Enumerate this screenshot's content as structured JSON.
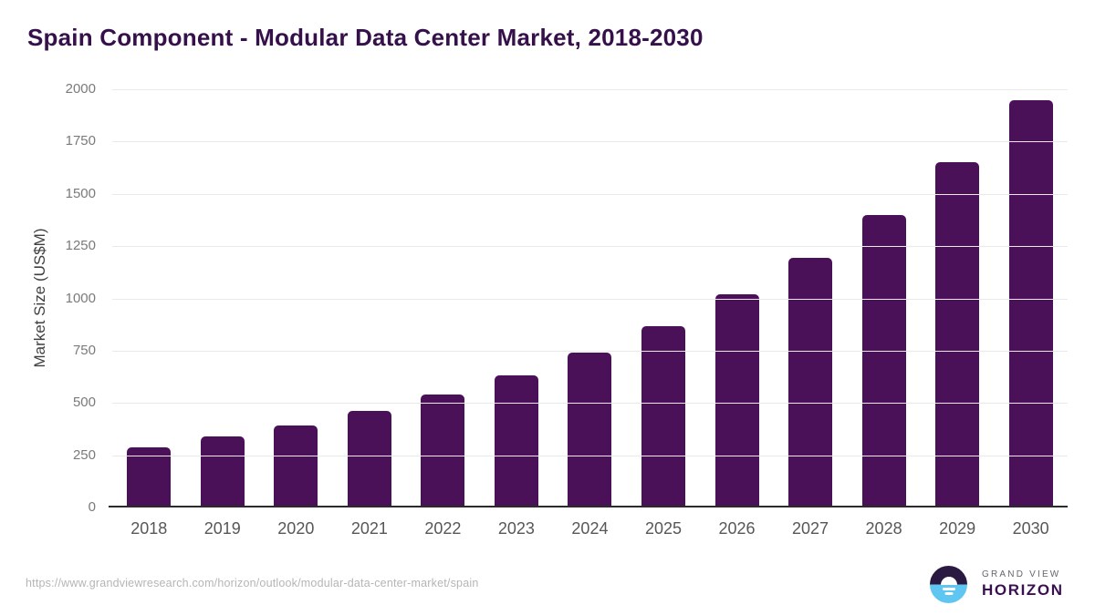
{
  "header": {
    "title": "Spain Component - Modular Data Center Market, 2018-2030"
  },
  "chart_data": {
    "type": "bar",
    "title": "Spain Component - Modular Data Center Market, 2018-2030",
    "categories": [
      "2018",
      "2019",
      "2020",
      "2021",
      "2022",
      "2023",
      "2024",
      "2025",
      "2026",
      "2027",
      "2028",
      "2029",
      "2030"
    ],
    "values": [
      289,
      338,
      393,
      460,
      540,
      631,
      739,
      865,
      1020,
      1195,
      1400,
      1652,
      1946
    ],
    "xlabel": "",
    "ylabel": "Market Size (US$M)",
    "ylim": [
      0,
      2000
    ],
    "yticks": [
      0,
      250,
      500,
      750,
      1000,
      1250,
      1500,
      1750,
      2000
    ],
    "grid": true,
    "legend": false,
    "bar_color": "#4a1058"
  },
  "footer": {
    "source_url": "https://www.grandviewresearch.com/horizon/outlook/modular-data-center-market/spain"
  },
  "branding": {
    "name_top": "GRAND VIEW",
    "name_bottom": "HORIZON",
    "logo_dark_color": "#2a1a42",
    "logo_blue_color": "#5fc5f1"
  },
  "colors": {
    "title": "#35104b",
    "bar": "#4a1058",
    "gridline": "#e9e9e9",
    "axis_line": "#2b2b2b",
    "y_tick_text": "#7a7a7a",
    "x_tick_text": "#575757",
    "source_text": "#b5b5b5"
  }
}
